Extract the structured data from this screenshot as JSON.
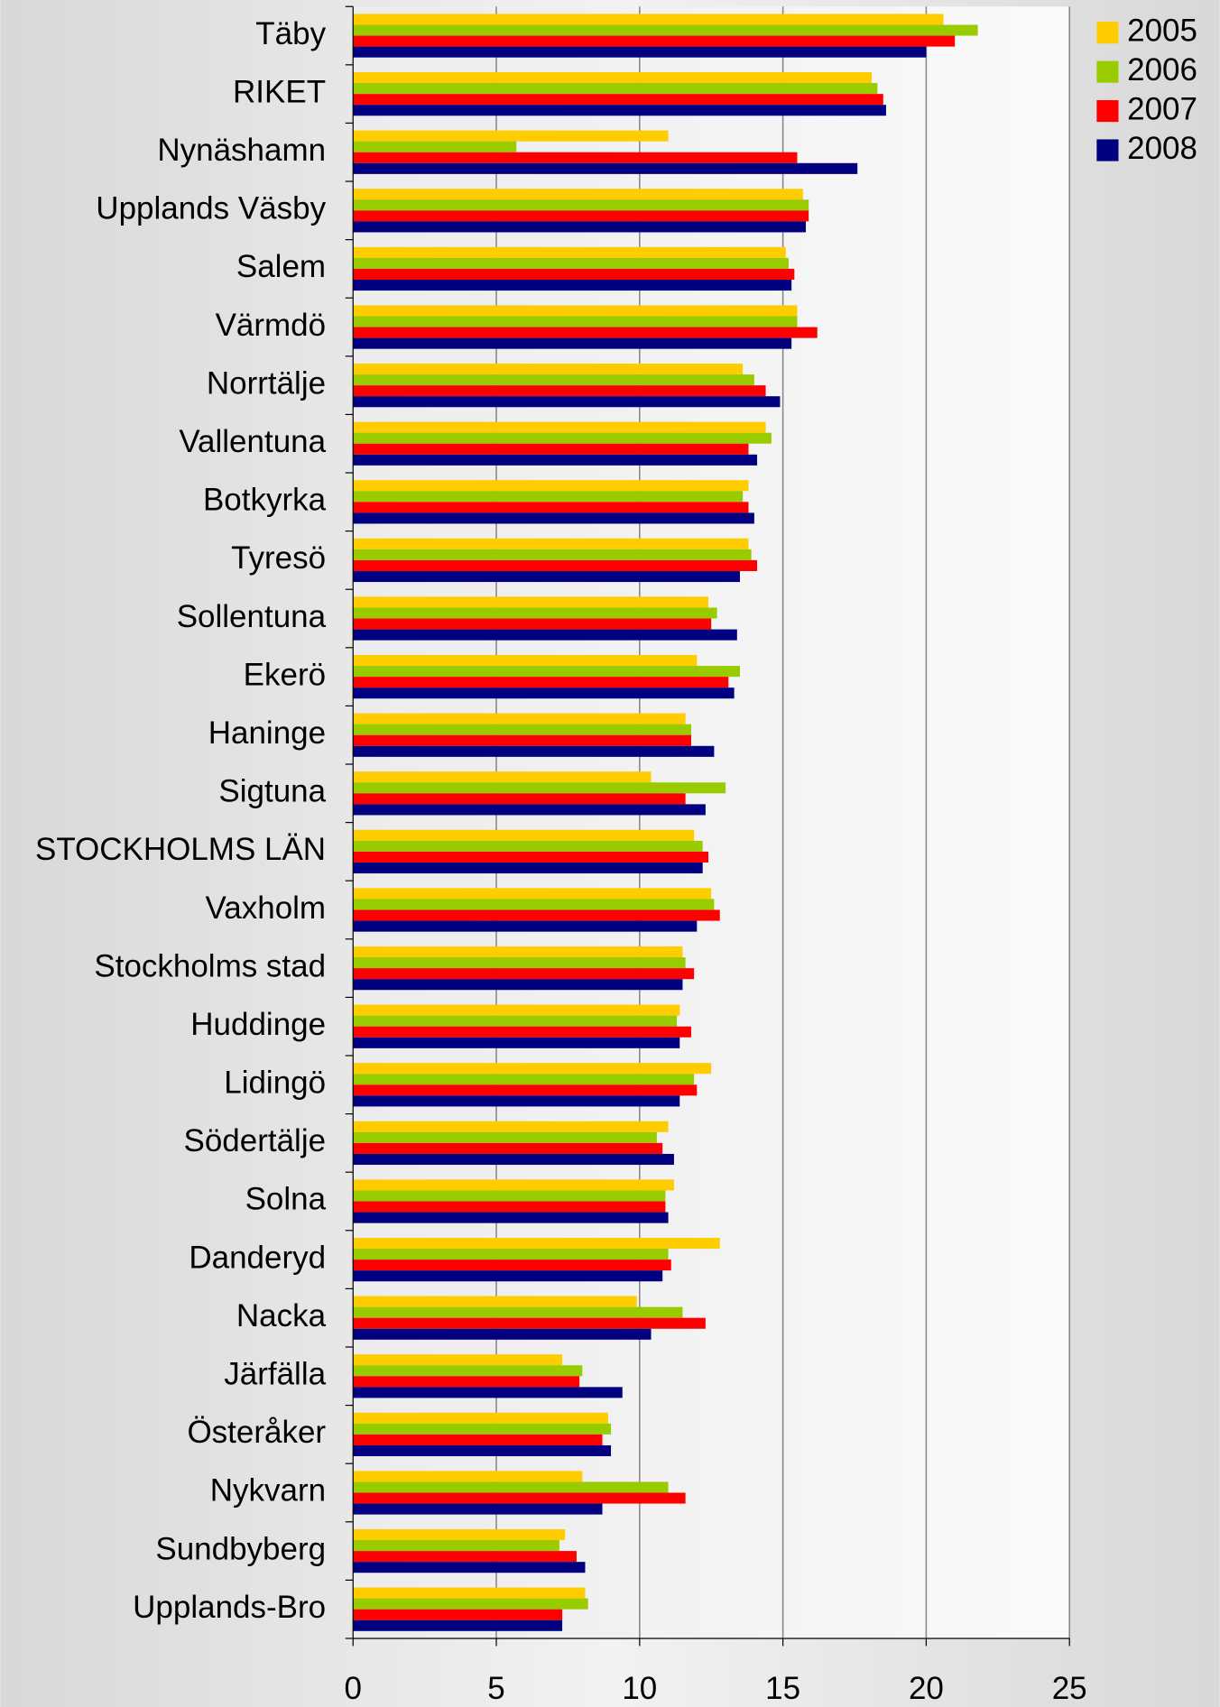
{
  "chart_data": {
    "type": "hbar",
    "categories": [
      "Täby",
      "RIKET",
      "Nynäshamn",
      "Upplands Väsby",
      "Salem",
      "Värmdö",
      "Norrtälje",
      "Vallentuna",
      "Botkyrka",
      "Tyresö",
      "Sollentuna",
      "Ekerö",
      "Haninge",
      "Sigtuna",
      "STOCKHOLMS LÄN",
      "Vaxholm",
      "Stockholms stad",
      "Huddinge",
      "Lidingö",
      "Södertälje",
      "Solna",
      "Danderyd",
      "Nacka",
      "Järfälla",
      "Österåker",
      "Nykvarn",
      "Sundbyberg",
      "Upplands-Bro"
    ],
    "series": [
      {
        "name": "2005",
        "color": "#ffcc00",
        "values": [
          20.6,
          18.1,
          11.0,
          15.7,
          15.1,
          15.5,
          13.6,
          14.4,
          13.8,
          13.8,
          12.4,
          12.0,
          11.6,
          10.4,
          11.9,
          12.5,
          11.5,
          11.4,
          12.5,
          11.0,
          11.2,
          12.8,
          9.9,
          7.3,
          8.9,
          8.0,
          7.4,
          8.1
        ]
      },
      {
        "name": "2006",
        "color": "#99cc00",
        "values": [
          21.8,
          18.3,
          5.7,
          15.9,
          15.2,
          15.5,
          14.0,
          14.6,
          13.6,
          13.9,
          12.7,
          13.5,
          11.8,
          13.0,
          12.2,
          12.6,
          11.6,
          11.3,
          11.9,
          10.6,
          10.9,
          11.0,
          11.5,
          8.0,
          9.0,
          11.0,
          7.2,
          8.2
        ]
      },
      {
        "name": "2007",
        "color": "#ff0000",
        "values": [
          21.0,
          18.5,
          15.5,
          15.9,
          15.4,
          16.2,
          14.4,
          13.8,
          13.8,
          14.1,
          12.5,
          13.1,
          11.8,
          11.6,
          12.4,
          12.8,
          11.9,
          11.8,
          12.0,
          10.8,
          10.9,
          11.1,
          12.3,
          7.9,
          8.7,
          11.6,
          7.8,
          7.3
        ]
      },
      {
        "name": "2008",
        "color": "#000080",
        "values": [
          20.0,
          18.6,
          17.6,
          15.8,
          15.3,
          15.3,
          14.9,
          14.1,
          14.0,
          13.5,
          13.4,
          13.3,
          12.6,
          12.3,
          12.2,
          12.0,
          11.5,
          11.4,
          11.4,
          11.2,
          11.0,
          10.8,
          10.4,
          9.4,
          9.0,
          8.7,
          8.1,
          7.3
        ]
      }
    ],
    "xlim": [
      0,
      25
    ],
    "xticks": [
      0,
      5,
      10,
      15,
      20,
      25
    ],
    "grid": true,
    "legend": "top-right"
  }
}
